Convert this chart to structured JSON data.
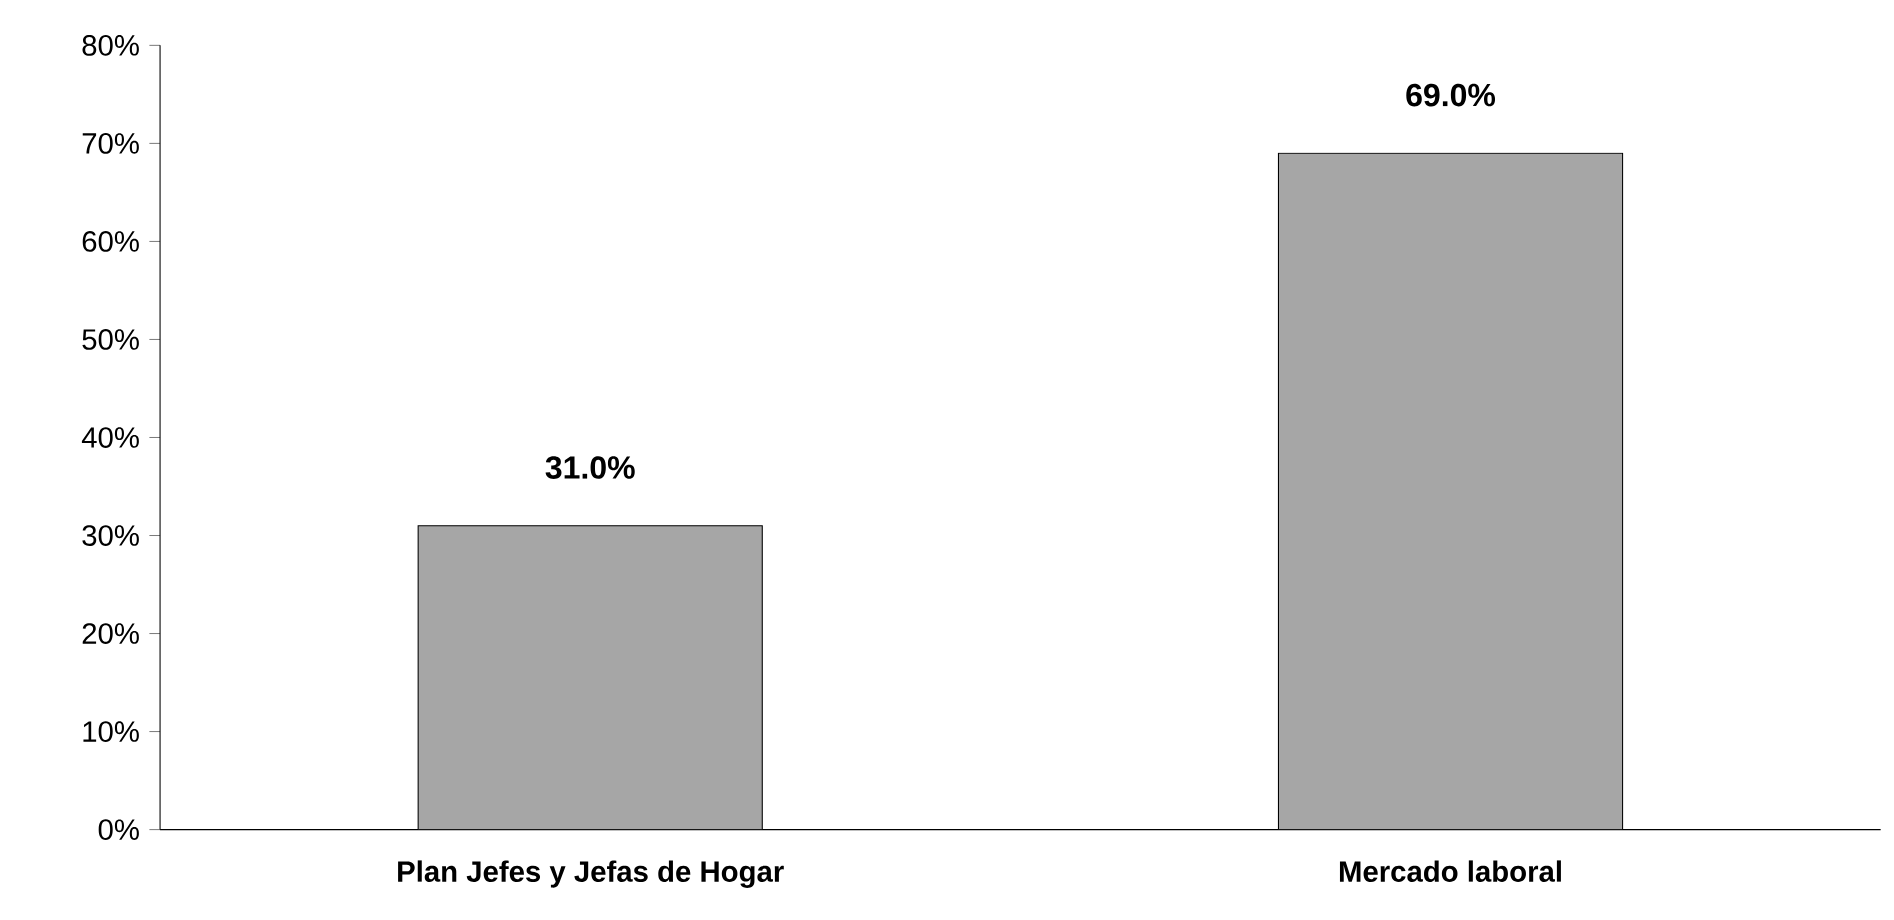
{
  "chart_data": {
    "type": "bar",
    "categories": [
      "Plan Jefes y Jefas de Hogar",
      "Mercado laboral"
    ],
    "values": [
      31.0,
      69.0
    ],
    "value_labels": [
      "31.0%",
      "69.0%"
    ],
    "color": "#a6a6a6",
    "ylim": [
      0,
      80
    ],
    "yticks": [
      {
        "value": 0,
        "label": "0%"
      },
      {
        "value": 10,
        "label": "10%"
      },
      {
        "value": 20,
        "label": "20%"
      },
      {
        "value": 30,
        "label": "30%"
      },
      {
        "value": 40,
        "label": "40%"
      },
      {
        "value": 50,
        "label": "50%"
      },
      {
        "value": 60,
        "label": "60%"
      },
      {
        "value": 70,
        "label": "70%"
      },
      {
        "value": 80,
        "label": "80%"
      }
    ]
  }
}
